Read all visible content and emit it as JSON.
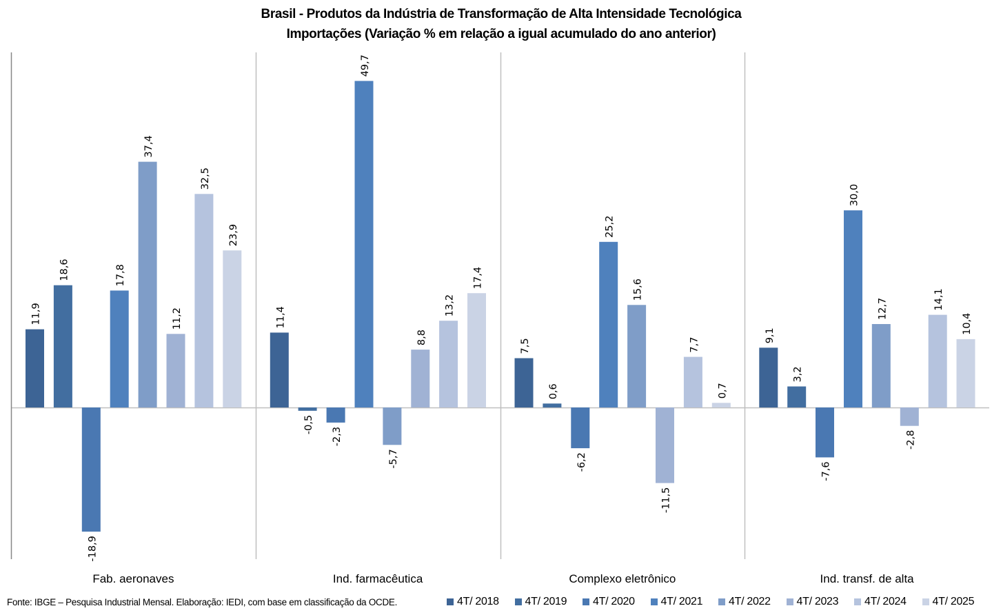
{
  "chart_data": {
    "type": "bar",
    "title": "Brasil - Produtos da Indústria de Transformação de Alta Intensidade Tecnológica",
    "subtitle": "Importações (Variação % em relação a igual acumulado do ano anterior)",
    "xlabel": "",
    "ylabel": "",
    "ylim": [
      -23,
      54.2
    ],
    "grid": false,
    "legend_position": "bottom-right",
    "categories": [
      "Fab. aeronaves",
      "Ind. farmacêutica",
      "Complexo eletrônico",
      "Ind. transf. de alta"
    ],
    "series": [
      {
        "name": "4T/ 2018",
        "color": "#3D6495",
        "values": [
          11.9,
          11.4,
          7.5,
          9.1
        ],
        "labels": [
          "11,9",
          "11,4",
          "7,5",
          "9,1"
        ]
      },
      {
        "name": "4T/ 2019",
        "color": "#426EA0",
        "values": [
          18.6,
          -0.5,
          0.6,
          3.2
        ],
        "labels": [
          "18,6",
          "-0,5",
          "0,6",
          "3,2"
        ]
      },
      {
        "name": "4T/ 2020",
        "color": "#4A78B2",
        "values": [
          -18.9,
          -2.3,
          -6.2,
          -7.6
        ],
        "labels": [
          "-18,9",
          "-2,3",
          "-6,2",
          "-7,6"
        ]
      },
      {
        "name": "4T/ 2021",
        "color": "#4F81BD",
        "values": [
          17.8,
          49.7,
          25.2,
          30.0
        ],
        "labels": [
          "17,8",
          "49,7",
          "25,2",
          "30,0"
        ]
      },
      {
        "name": "4T/ 2022",
        "color": "#7F9DC8",
        "values": [
          37.4,
          -5.7,
          15.6,
          12.7
        ],
        "labels": [
          "37,4",
          "-5,7",
          "15,6",
          "12,7"
        ]
      },
      {
        "name": "4T/ 2023",
        "color": "#A0B2D4",
        "values": [
          11.2,
          8.8,
          -11.5,
          -2.8
        ],
        "labels": [
          "11,2",
          "8,8",
          "-11,5",
          "-2,8"
        ]
      },
      {
        "name": "4T/ 2024",
        "color": "#B5C3DE",
        "values": [
          32.5,
          13.2,
          7.7,
          14.1
        ],
        "labels": [
          "32,5",
          "13,2",
          "7,7",
          "14,1"
        ]
      },
      {
        "name": "4T/ 2025",
        "color": "#CAD3E5",
        "values": [
          23.9,
          17.4,
          0.7,
          10.4
        ],
        "labels": [
          "23,9",
          "17,4",
          "0,7",
          "10,4"
        ]
      }
    ]
  },
  "footer": {
    "source": "Fonte: IBGE – Pesquisa Industrial Mensal. Elaboração: IEDI, com base em classificação da OCDE."
  },
  "colors": {
    "axis_line": "#868686",
    "divider_line": "#BFBFBF"
  }
}
